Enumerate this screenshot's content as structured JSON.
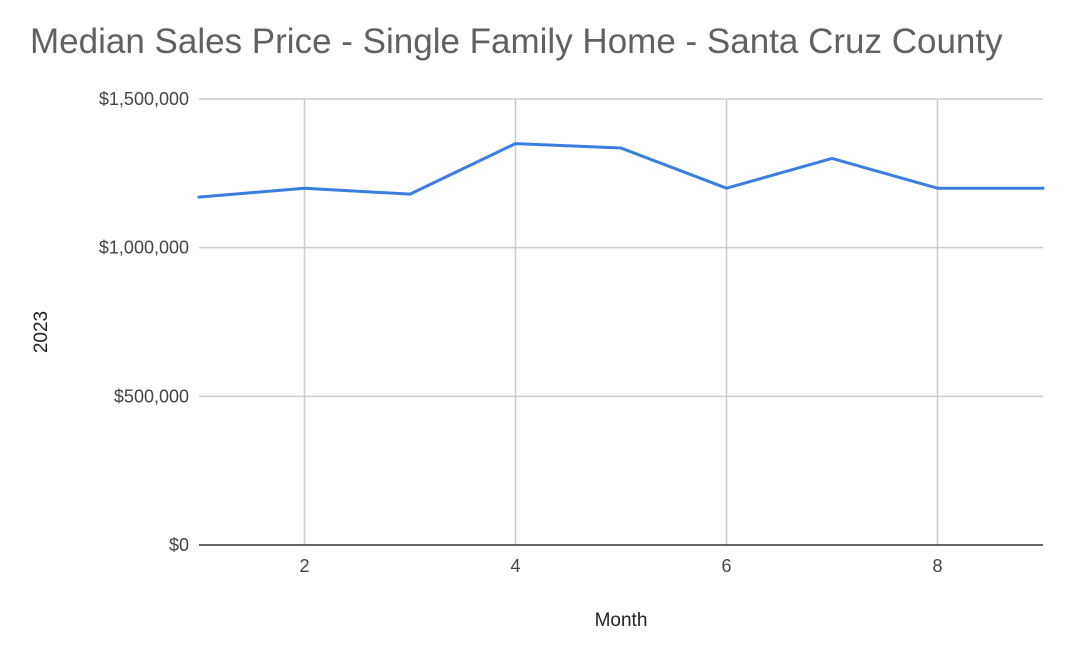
{
  "chart_data": {
    "type": "line",
    "title": "Median Sales Price - Single Family Home - Santa Cruz County",
    "xlabel": "Month",
    "ylabel": "2023",
    "x": [
      1,
      2,
      3,
      4,
      5,
      6,
      7,
      8,
      9
    ],
    "series": [
      {
        "values": [
          1170000,
          1200000,
          1180000,
          1350000,
          1335000,
          1200000,
          1300000,
          1200000,
          1200000
        ]
      }
    ],
    "xlim": [
      1,
      9
    ],
    "ylim": [
      0,
      1500000
    ],
    "x_ticks": [
      2,
      4,
      6,
      8
    ],
    "x_tick_labels": [
      "2",
      "4",
      "6",
      "8"
    ],
    "y_ticks": [
      0,
      500000,
      1000000,
      1500000
    ],
    "y_tick_labels": [
      "$0",
      "$500,000",
      "$1,000,000",
      "$1,500,000"
    ],
    "grid": true,
    "legend": "none",
    "colors": {
      "line": "#3c7ee0",
      "grid": "#cccccc",
      "axis": "#333333"
    }
  }
}
